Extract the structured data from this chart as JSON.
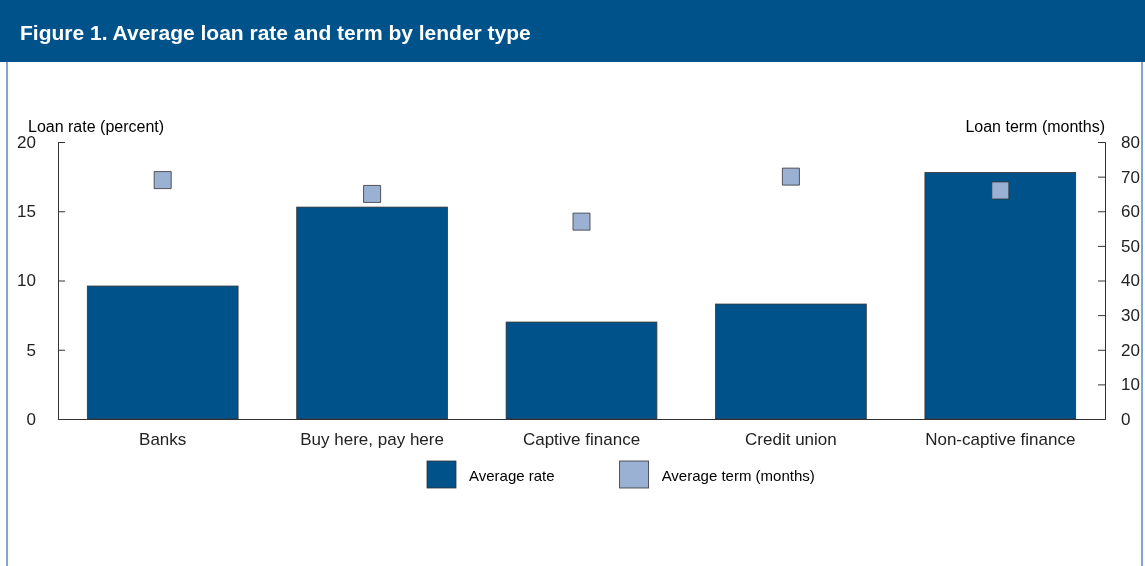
{
  "chart_data": {
    "type": "bar",
    "title": "Figure 1. Average loan rate and term by lender type",
    "ylabel": "Loan rate (percent)",
    "y2label": "Loan term (months)",
    "categories": [
      "Banks",
      "Buy here, pay here",
      "Captive finance",
      "Credit union",
      "Non-captive finance"
    ],
    "series": [
      {
        "name": "Average rate",
        "color": "#00538a",
        "values": [
          9.6,
          15.3,
          7.0,
          8.3,
          17.8
        ]
      },
      {
        "name": "Average term (months)",
        "type": "scatter",
        "axis": "y2",
        "marker": "square",
        "color": "#9bb1d4",
        "values": [
          69,
          65,
          57,
          70,
          66
        ]
      }
    ],
    "ylim": [
      0,
      20
    ],
    "yticks": [
      0,
      5,
      10,
      15,
      20
    ],
    "y2lim": [
      0,
      80
    ],
    "y2ticks": [
      0,
      10,
      20,
      30,
      40,
      50,
      60,
      70,
      80
    ],
    "grid": false,
    "legend": "bottom"
  }
}
